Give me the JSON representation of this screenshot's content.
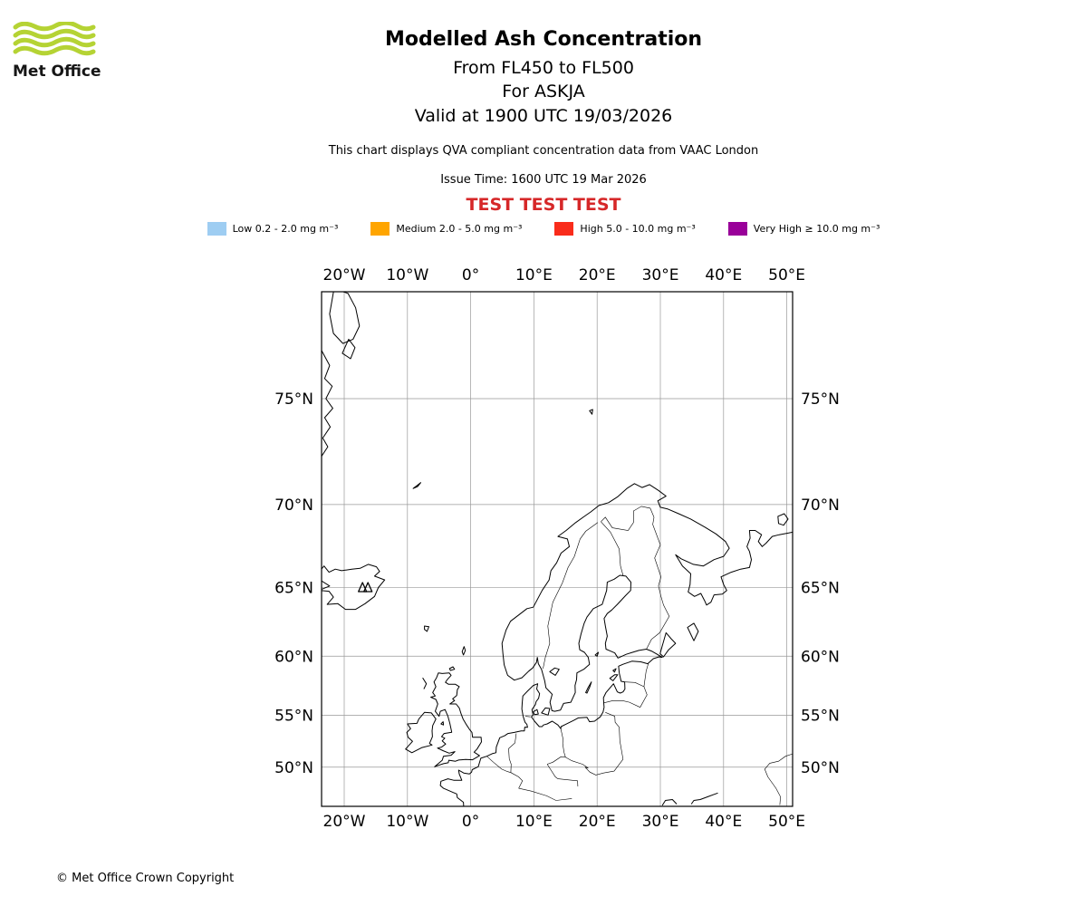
{
  "header": {
    "logo_text": "Met Office",
    "title": "Modelled Ash Concentration",
    "subtitle_flight_levels": "From FL450 to FL500",
    "subtitle_volcano": "For ASKJA",
    "subtitle_valid_time": "Valid at 1900 UTC 19/03/2026",
    "description": "This chart displays QVA compliant concentration data from VAAC London",
    "issue_time": "Issue Time: 1600 UTC 19 Mar 2026",
    "test_banner": "TEST TEST TEST",
    "test_banner_color": "#d62728",
    "logo_green": "#b5d334"
  },
  "legend": {
    "items": [
      {
        "key": "low",
        "label": "Low 0.2 - 2.0 mg m⁻³",
        "color": "#9ecdf2"
      },
      {
        "key": "medium",
        "label": "Medium 2.0 - 5.0 mg m⁻³",
        "color": "#ffa500"
      },
      {
        "key": "high",
        "label": "High 5.0 - 10.0 mg m⁻³",
        "color": "#f92c1b"
      },
      {
        "key": "very-high",
        "label": "Very High ≥ 10.0 mg m⁻³",
        "color": "#990099"
      }
    ]
  },
  "map": {
    "x_tick_labels": [
      "20°W",
      "10°W",
      "0°",
      "10°E",
      "20°E",
      "30°E",
      "40°E",
      "50°E"
    ],
    "y_tick_labels": [
      "75°N",
      "70°N",
      "65°N",
      "60°N",
      "55°N",
      "50°N"
    ]
  },
  "footer": {
    "copyright": "© Met Office Crown Copyright"
  },
  "chart_data": {
    "type": "map",
    "title": "Modelled Ash Concentration",
    "projection": "mercator",
    "extent": {
      "lon_min": -23.6,
      "lon_max": 51.4,
      "lat_min": 45.9,
      "lat_max": 78.8
    },
    "x_ticks_deg": [
      -20,
      -10,
      0,
      10,
      20,
      30,
      40,
      50
    ],
    "y_ticks_deg": [
      75,
      70,
      65,
      60,
      55,
      50
    ],
    "volcano": {
      "name": "ASKJA",
      "lon": -16.75,
      "lat": 65.03
    },
    "legend_thresholds_mg_m3": [
      [
        0.2,
        2.0
      ],
      [
        2.0,
        5.0
      ],
      [
        5.0,
        10.0
      ],
      [
        10.0,
        null
      ]
    ]
  }
}
